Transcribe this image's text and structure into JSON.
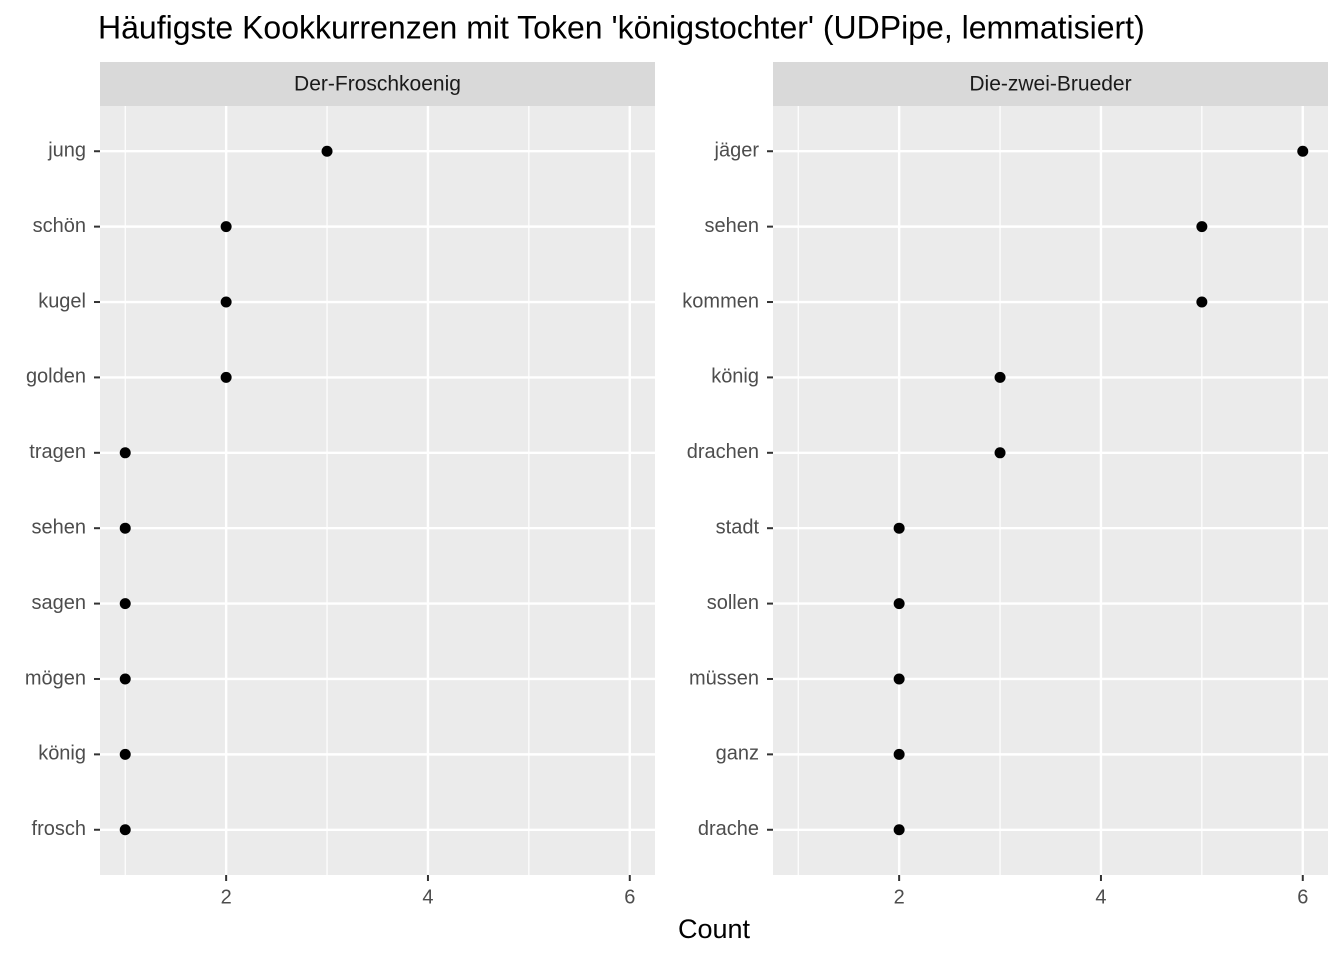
{
  "chart_data": {
    "type": "dot",
    "title": "Häufigste Kookkurrenzen mit Token 'königstochter' (UDPipe, lemmatisiert)",
    "xlabel": "Count",
    "xlim": [
      0.75,
      6.25
    ],
    "xticks": [
      2,
      4,
      6
    ],
    "xminor_ticks": [
      1,
      3,
      5
    ],
    "grid": true,
    "color": "#000000",
    "panels": [
      {
        "title": "Der-Froschkoenig",
        "categories": [
          "jung",
          "schön",
          "kugel",
          "golden",
          "tragen",
          "sehen",
          "sagen",
          "mögen",
          "könig",
          "frosch"
        ],
        "values": [
          3,
          2,
          2,
          2,
          1,
          1,
          1,
          1,
          1,
          1
        ]
      },
      {
        "title": "Die-zwei-Brueder",
        "categories": [
          "jäger",
          "sehen",
          "kommen",
          "könig",
          "drachen",
          "stadt",
          "sollen",
          "müssen",
          "ganz",
          "drache"
        ],
        "values": [
          6,
          5,
          5,
          3,
          3,
          2,
          2,
          2,
          2,
          2
        ]
      }
    ]
  }
}
